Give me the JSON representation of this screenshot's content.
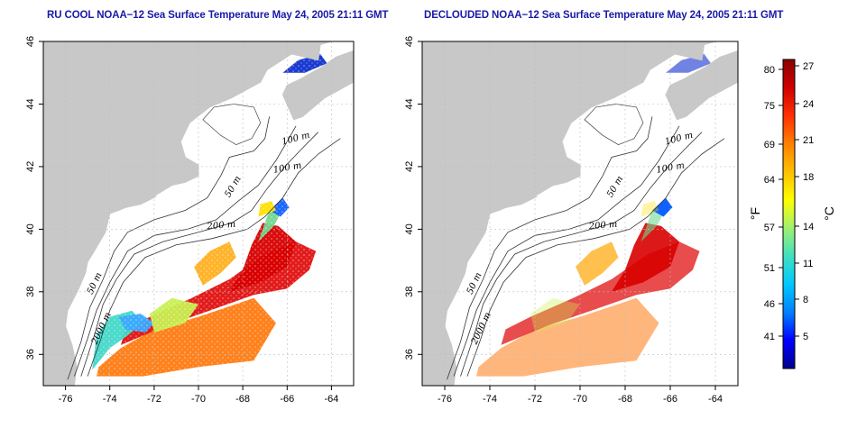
{
  "maps": [
    {
      "id": "left",
      "title": "RU COOL NOAA−12 Sea Surface Temperature May 24, 2005 21:11 GMT",
      "x_ticks": [
        "-76",
        "-74",
        "-72",
        "-70",
        "-68",
        "-66",
        "-64"
      ],
      "y_ticks": [
        "46",
        "44",
        "42",
        "40",
        "38",
        "36"
      ],
      "contour_labels": [
        "100 m",
        "100 m",
        "50 m",
        "200 m",
        "50 m",
        "2000 m"
      ]
    },
    {
      "id": "right",
      "title": "DECLOUDED NOAA−12 Sea Surface Temperature May 24, 2005 21:11 GMT",
      "x_ticks": [
        "-76",
        "-74",
        "-72",
        "-70",
        "-68",
        "-66",
        "-64"
      ],
      "y_ticks": [
        "46",
        "44",
        "42",
        "40",
        "38",
        "36"
      ],
      "contour_labels": [
        "100 m",
        "100 m",
        "50 m",
        "200 m",
        "50 m",
        "2000 m"
      ]
    }
  ],
  "colorbar": {
    "unit_f": "°F",
    "unit_c": "°C",
    "f_ticks": [
      "80",
      "75",
      "69",
      "64",
      "57",
      "51",
      "46",
      "41"
    ],
    "c_ticks": [
      "27",
      "24",
      "21",
      "18",
      "14",
      "11",
      "8",
      "5"
    ],
    "colors": [
      "#00008b",
      "#0000ff",
      "#0080ff",
      "#00c8ff",
      "#40e0c0",
      "#a0f070",
      "#ffff00",
      "#ffc000",
      "#ff8000",
      "#ff3000",
      "#d00000",
      "#8b0000"
    ]
  }
}
